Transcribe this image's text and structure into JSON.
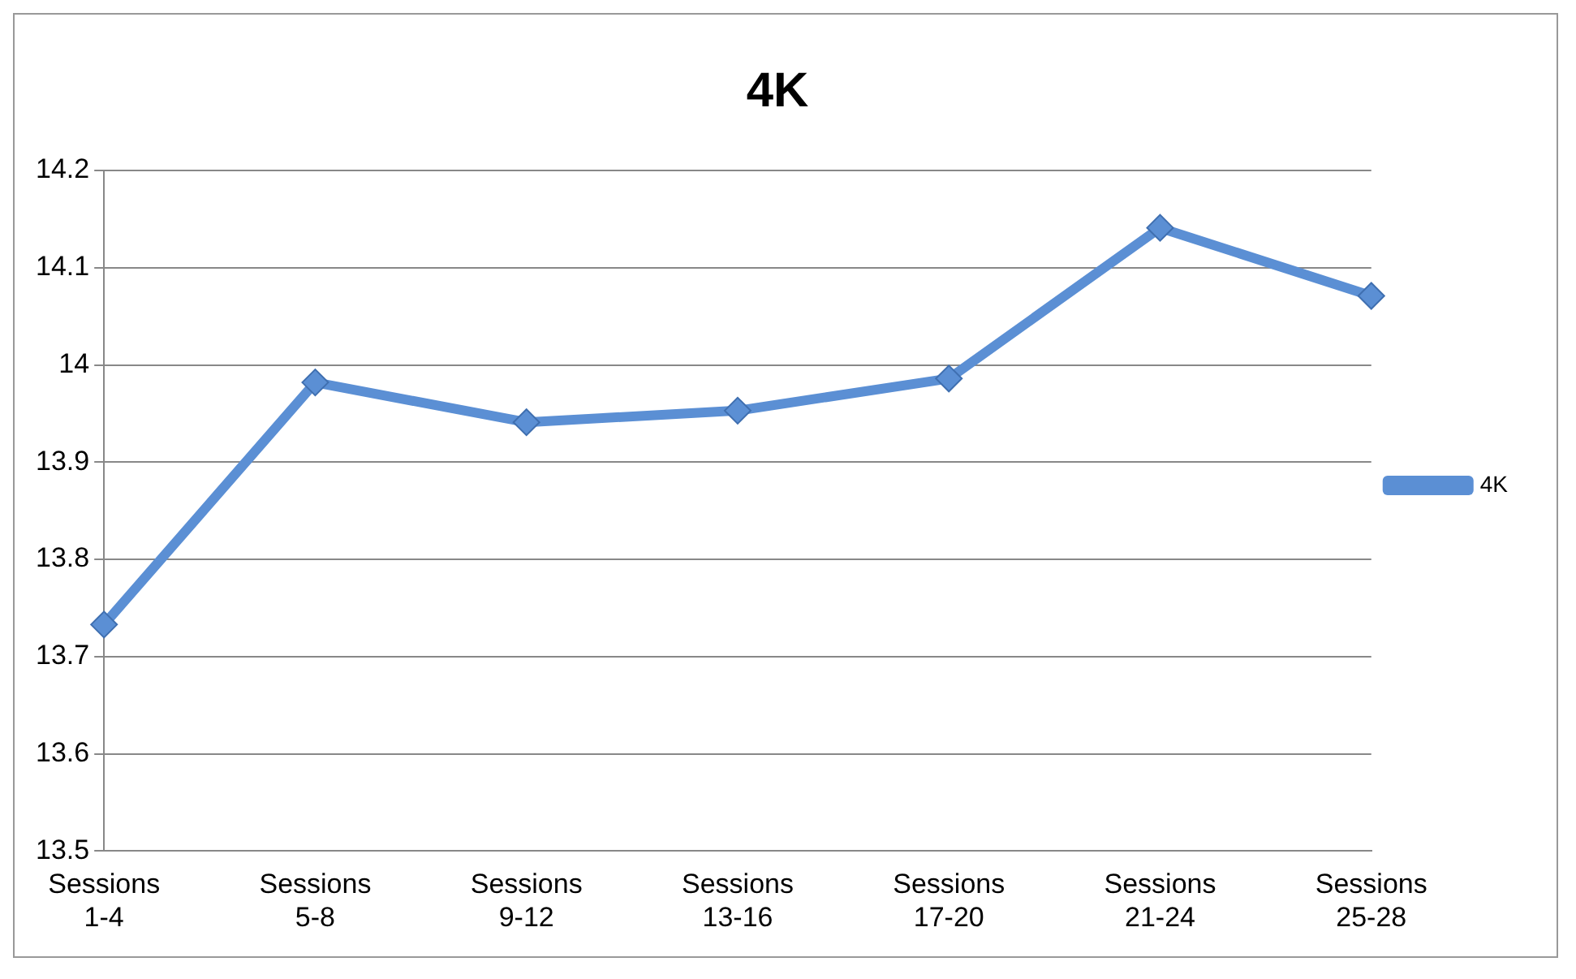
{
  "chart_data": {
    "type": "line",
    "title": "4K",
    "categories": [
      "Sessions 1-4",
      "Sessions 5-8",
      "Sessions 9-12",
      "Sessions 13-16",
      "Sessions 17-20",
      "Sessions 21-24",
      "Sessions 25-28"
    ],
    "series": [
      {
        "name": "4K",
        "color": "#5b8fd4",
        "values": [
          13.733,
          13.982,
          13.941,
          13.953,
          13.986,
          14.141,
          14.071
        ]
      }
    ],
    "ylim": [
      13.5,
      14.2
    ],
    "yticks": [
      13.5,
      13.6,
      13.7,
      13.8,
      13.9,
      14,
      14.1,
      14.2
    ],
    "grid": "y",
    "legend": "right",
    "marker": "diamond",
    "line_style": "solid"
  }
}
